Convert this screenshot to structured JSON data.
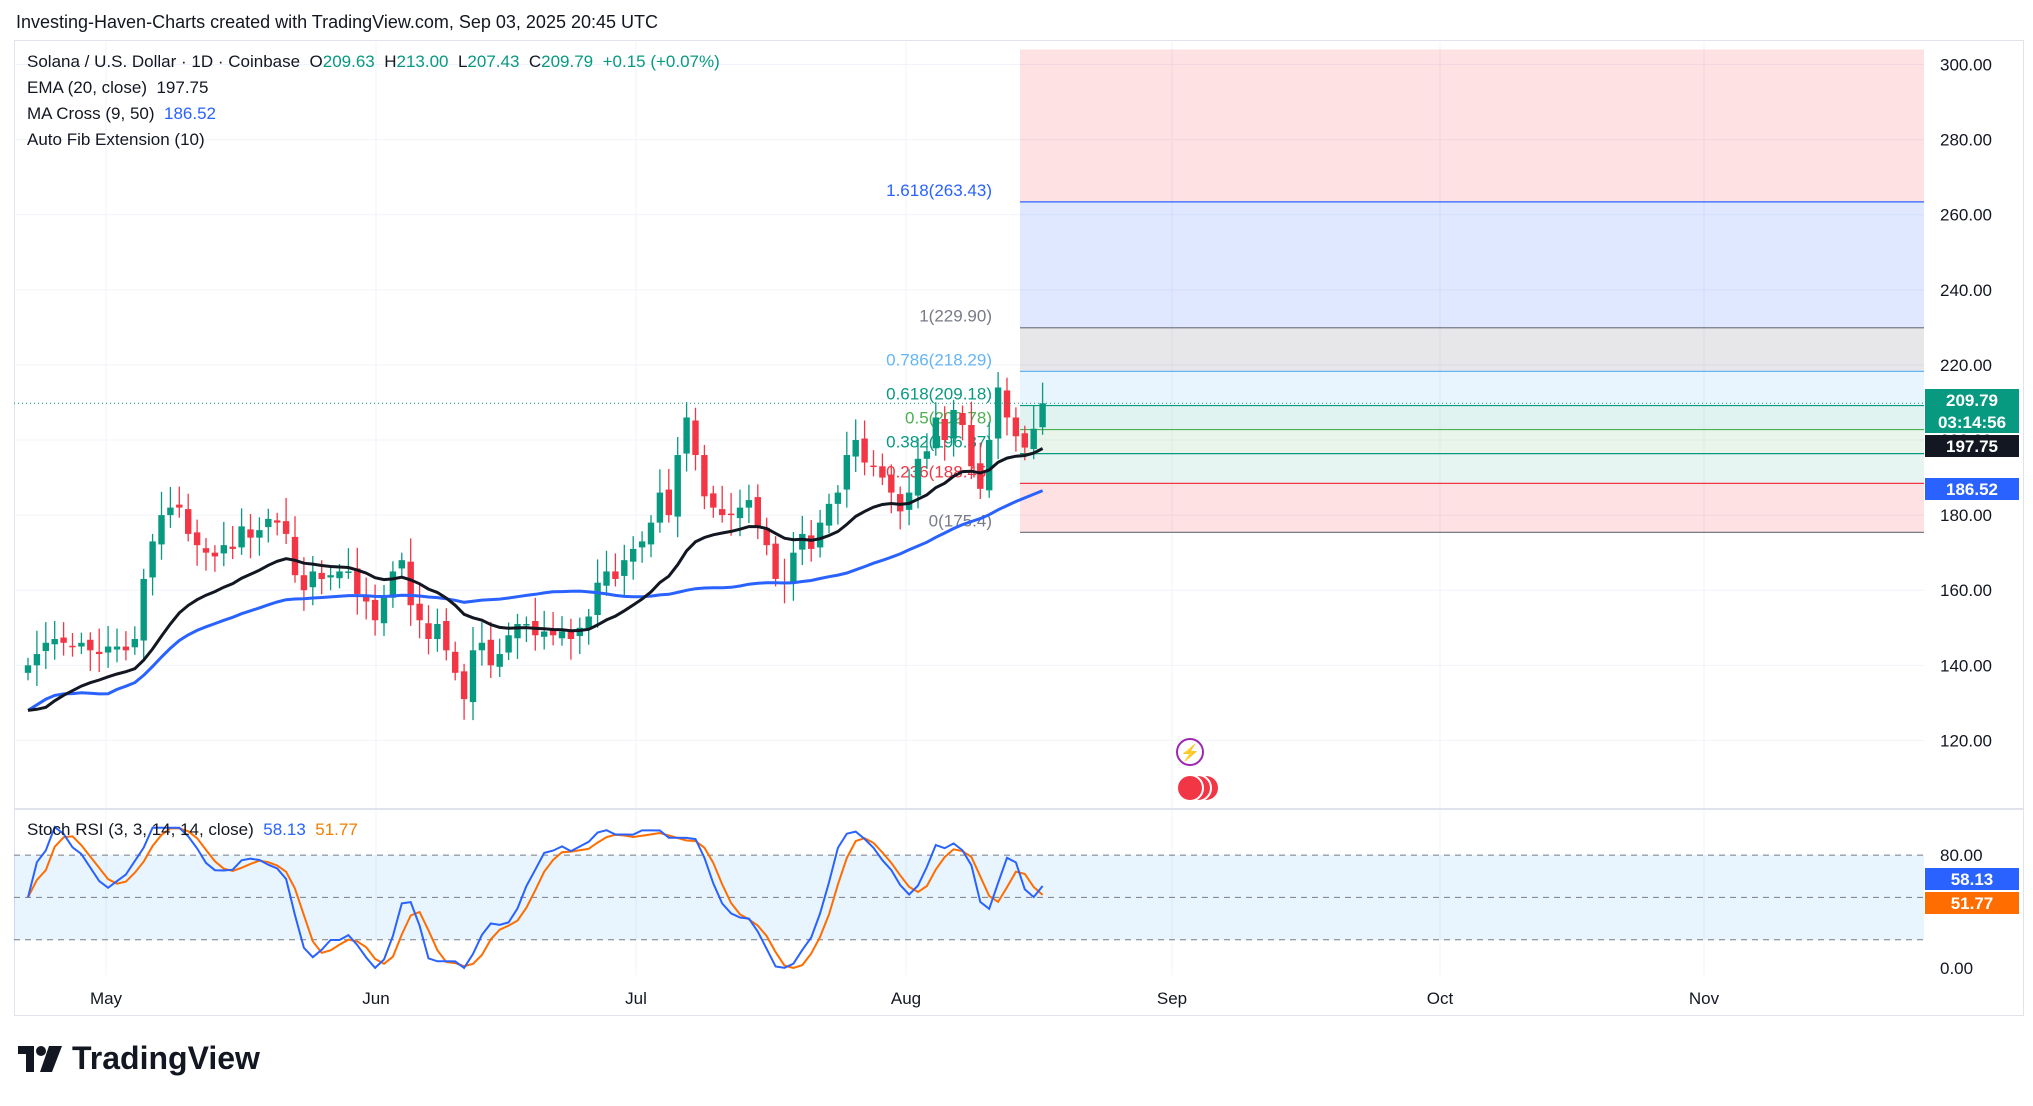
{
  "header": "Investing-Haven-Charts created with TradingView.com, Sep 03, 2025 20:45 UTC",
  "legend": {
    "symbol": "Solana / U.S. Dollar · 1D · Coinbase",
    "o_label": "O",
    "o_val": "209.63",
    "h_label": "H",
    "h_val": "213.00",
    "l_label": "L",
    "l_val": "207.43",
    "c_label": "C",
    "c_val": "209.79",
    "change": "+0.15 (+0.07%)",
    "ema_label": "EMA (20, close)",
    "ema_val": "197.75",
    "ma_label": "MA Cross (9, 50)",
    "ma_val": "186.52",
    "fib_label": "Auto Fib Extension (10)",
    "stoch_label": "Stoch RSI (3, 3, 14, 14, close)",
    "stoch_k": "58.13",
    "stoch_d": "51.77"
  },
  "brand": "TradingView",
  "chart_data": [
    {
      "type": "candlestick",
      "title": "Solana / U.S. Dollar · 1D · Coinbase",
      "x_ticks": [
        "May",
        "Jun",
        "Jul",
        "Aug",
        "Sep",
        "Oct",
        "Nov"
      ],
      "y_ticks": [
        120,
        140,
        160,
        180,
        200,
        220,
        240,
        260,
        280,
        300
      ],
      "y_tick_labels": [
        "120.00",
        "140.00",
        "160.00",
        "180.00",
        "200.00",
        "220.00",
        "240.00",
        "260.00",
        "280.00",
        "300.00"
      ],
      "ylim": [
        102,
        306
      ],
      "start_date": "2025-04-26",
      "closes": [
        140,
        143,
        146,
        147,
        146,
        145,
        146,
        144,
        143,
        145,
        145,
        144,
        147,
        163,
        173,
        180,
        182,
        182,
        175,
        172,
        170,
        169,
        172,
        171,
        177,
        174,
        176,
        179,
        178,
        175,
        164,
        160,
        165,
        163,
        164,
        165,
        165,
        159,
        157,
        152,
        158,
        165,
        168,
        156,
        152,
        147,
        151,
        144,
        138,
        131,
        144,
        146,
        140,
        143,
        148,
        151,
        151,
        148,
        149,
        148,
        149,
        147,
        150,
        153,
        162,
        165,
        163,
        168,
        171,
        173,
        178,
        186,
        180,
        196,
        206,
        196,
        185,
        182,
        180,
        180,
        182,
        184,
        177,
        172,
        163,
        162,
        170,
        175,
        171,
        178,
        183,
        186,
        196,
        200,
        194,
        193,
        190,
        186,
        181,
        186,
        195,
        197,
        206,
        200,
        208,
        204,
        193,
        187,
        200,
        214,
        206,
        201,
        198,
        203,
        209.79
      ],
      "ema20_last": 197.75,
      "ma50_last": 186.52,
      "fib_levels": [
        {
          "label": "0(175.4)",
          "ratio": "0",
          "value": 175.4,
          "color": "#787b86"
        },
        {
          "label": "0.236(188.45)",
          "ratio": "0.236",
          "value": 188.45,
          "color": "#f23645"
        },
        {
          "label": "0.382(196.37)",
          "ratio": "0.382",
          "value": 196.37,
          "color": "#089981"
        },
        {
          "label": "0.5(202.78)",
          "ratio": "0.5",
          "value": 202.78,
          "color": "#4caf50"
        },
        {
          "label": "0.618(209.18)",
          "ratio": "0.618",
          "value": 209.18,
          "color": "#089981"
        },
        {
          "label": "0.786(218.29)",
          "ratio": "0.786",
          "value": 218.29,
          "color": "#64b5f6"
        },
        {
          "label": "1(229.90)",
          "ratio": "1",
          "value": 229.9,
          "color": "#787b86"
        },
        {
          "label": "1.618(263.43)",
          "ratio": "1.618",
          "value": 263.43,
          "color": "#2962ff"
        }
      ],
      "price_tags": [
        {
          "text": "209.79",
          "value": 209.79,
          "color": "#089981"
        },
        {
          "text": "03:14:56",
          "value": 209.79,
          "color": "#089981"
        },
        {
          "text": "197.75",
          "value": 197.75,
          "color": "#131722"
        },
        {
          "text": "186.52",
          "value": 186.52,
          "color": "#2962ff"
        }
      ]
    },
    {
      "type": "line",
      "title": "Stoch RSI (3, 3, 14, 14, close)",
      "y_ticks": [
        0,
        80
      ],
      "y_tick_labels": [
        "0.00",
        "80.00"
      ],
      "ylim": [
        -5,
        112
      ],
      "band": [
        20,
        80
      ],
      "midline": 50,
      "series": [
        {
          "name": "K",
          "color": "#2962ff",
          "last": 58.13
        },
        {
          "name": "D",
          "color": "#ff6d00",
          "last": 51.77
        }
      ]
    }
  ],
  "colors": {
    "up": "#089981",
    "down": "#f23645",
    "ema": "#131722",
    "ma": "#2962ff"
  }
}
